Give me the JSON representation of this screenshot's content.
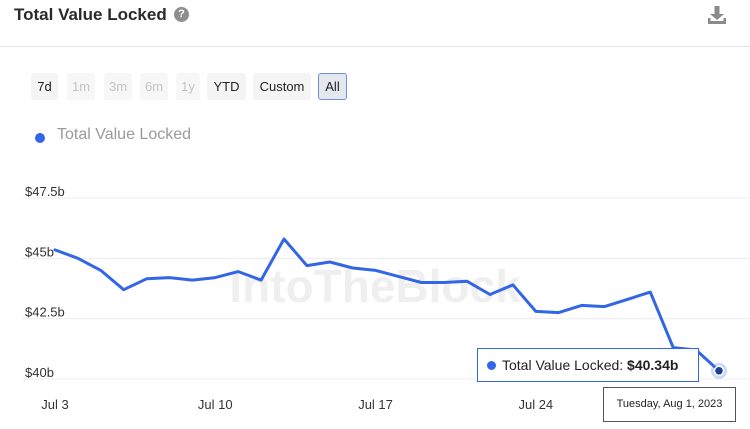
{
  "header": {
    "title": "Total Value Locked",
    "help_icon": "question-circle-icon",
    "download_icon": "download-icon"
  },
  "range_buttons": [
    {
      "label": "7d",
      "state": "enabled"
    },
    {
      "label": "1m",
      "state": "disabled"
    },
    {
      "label": "3m",
      "state": "disabled"
    },
    {
      "label": "6m",
      "state": "disabled"
    },
    {
      "label": "1y",
      "state": "disabled"
    },
    {
      "label": "YTD",
      "state": "enabled"
    },
    {
      "label": "Custom",
      "state": "enabled"
    },
    {
      "label": "All",
      "state": "active"
    }
  ],
  "legend": {
    "label": "Total Value Locked",
    "color": "#3366e6"
  },
  "watermark": "IntoTheBlock",
  "tooltip": {
    "series": "Total Value Locked:",
    "value": "$40.34b",
    "date": "Tuesday, Aug 1, 2023"
  },
  "colors": {
    "series": "#3366e6",
    "grid": "#ececec",
    "axis_text": "#333333",
    "active_border": "#6f8fdc"
  },
  "chart_data": {
    "type": "line",
    "title": "Total Value Locked",
    "series": [
      {
        "name": "Total Value Locked",
        "x": [
          "2023-07-03",
          "2023-07-04",
          "2023-07-05",
          "2023-07-06",
          "2023-07-07",
          "2023-07-08",
          "2023-07-09",
          "2023-07-10",
          "2023-07-11",
          "2023-07-12",
          "2023-07-13",
          "2023-07-14",
          "2023-07-15",
          "2023-07-16",
          "2023-07-17",
          "2023-07-18",
          "2023-07-19",
          "2023-07-20",
          "2023-07-21",
          "2023-07-22",
          "2023-07-23",
          "2023-07-24",
          "2023-07-25",
          "2023-07-26",
          "2023-07-27",
          "2023-07-28",
          "2023-07-29",
          "2023-07-30",
          "2023-07-31",
          "2023-08-01"
        ],
        "y": [
          45.35,
          45.0,
          44.5,
          43.7,
          44.15,
          44.2,
          44.1,
          44.2,
          44.45,
          44.1,
          45.8,
          44.7,
          44.85,
          44.6,
          44.5,
          44.25,
          44.0,
          44.0,
          44.05,
          43.5,
          43.9,
          42.8,
          42.75,
          43.05,
          43.0,
          43.3,
          43.6,
          41.3,
          41.2,
          40.34
        ]
      }
    ],
    "x_ticks": [
      "Jul 3",
      "Jul 10",
      "Jul 17",
      "Jul 24"
    ],
    "x_tick_dates": [
      "2023-07-03",
      "2023-07-10",
      "2023-07-17",
      "2023-07-24"
    ],
    "y_ticks": [
      "$40b",
      "$42.5b",
      "$45b",
      "$47.5b"
    ],
    "y_tick_values": [
      40,
      42.5,
      45,
      47.5
    ],
    "ylim": [
      40,
      47.5
    ],
    "grid": true,
    "legend_position": "top-left"
  }
}
